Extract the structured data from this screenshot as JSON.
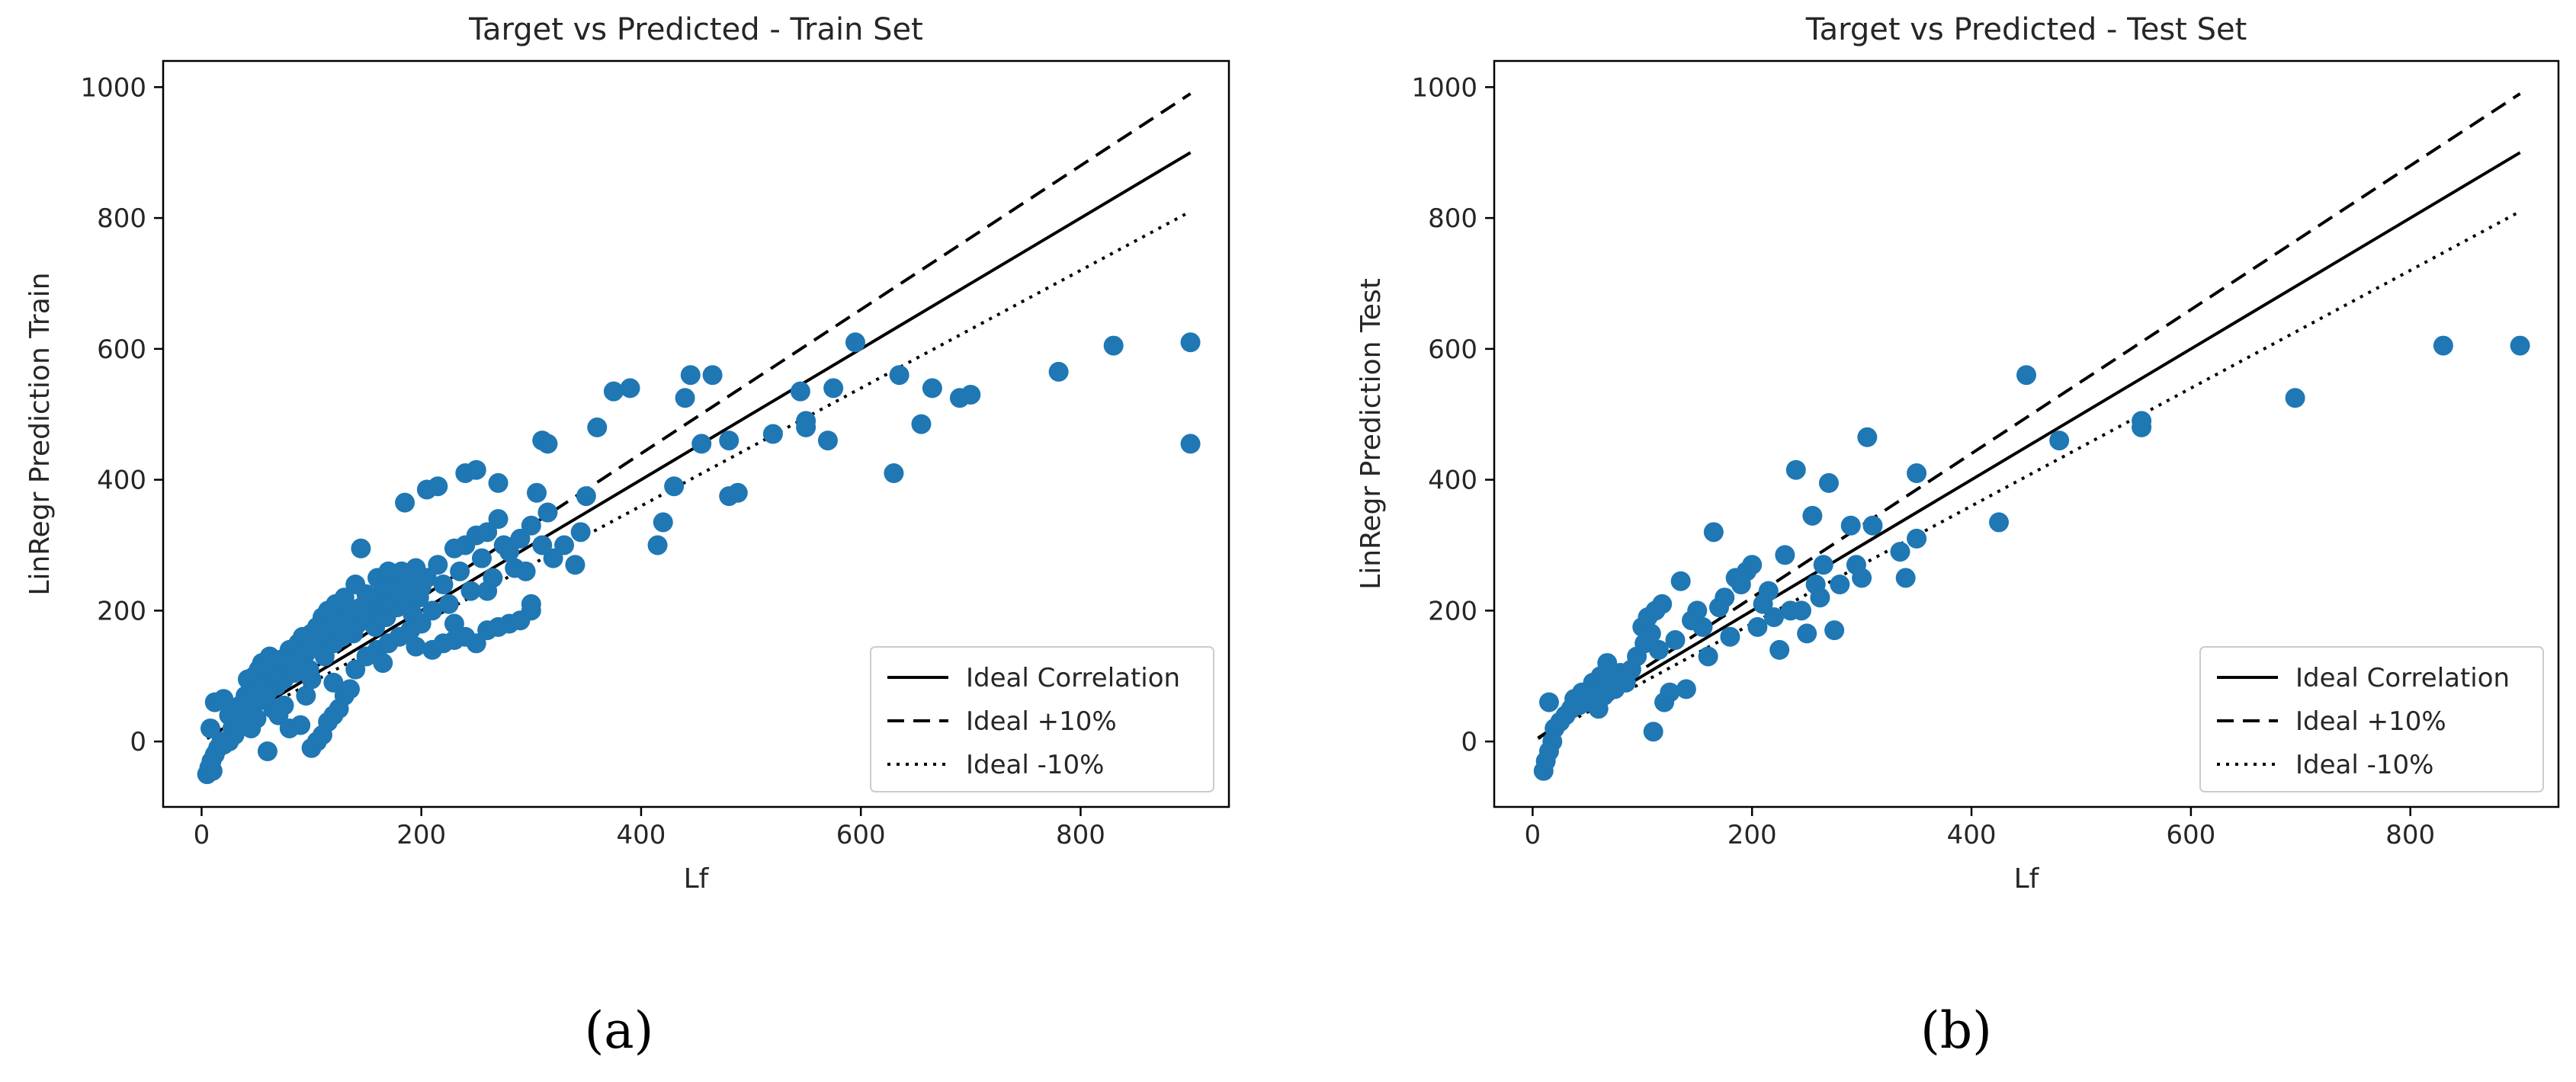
{
  "figure": {
    "panel_labels": [
      "(a)",
      "(b)"
    ]
  },
  "chart_data": [
    {
      "type": "scatter",
      "title": "Target vs Predicted - Train Set",
      "xlabel": "Lf",
      "ylabel": "LinRegr Prediction Train",
      "xlim": [
        -35,
        935
      ],
      "ylim": [
        -100,
        1040
      ],
      "xticks": [
        0,
        200,
        400,
        600,
        800
      ],
      "yticks": [
        0,
        200,
        400,
        600,
        800,
        1000
      ],
      "grid": false,
      "legend_position": "lower-right",
      "marker_color": "#1f77b4",
      "reference_lines": [
        {
          "name": "Ideal Correlation",
          "style": "solid",
          "factor": 1.0,
          "x": [
            5,
            900
          ],
          "color": "#000000"
        },
        {
          "name": "Ideal +10%",
          "style": "dashed",
          "factor": 1.1,
          "x": [
            5,
            900
          ],
          "color": "#000000"
        },
        {
          "name": "Ideal -10%",
          "style": "dotted",
          "factor": 0.9,
          "x": [
            5,
            900
          ],
          "color": "#000000"
        }
      ],
      "points": [
        [
          5,
          -50
        ],
        [
          7,
          -40
        ],
        [
          9,
          -30
        ],
        [
          12,
          -20
        ],
        [
          15,
          -10
        ],
        [
          18,
          0
        ],
        [
          8,
          20
        ],
        [
          12,
          60
        ],
        [
          20,
          65
        ],
        [
          25,
          40
        ],
        [
          28,
          20
        ],
        [
          32,
          30
        ],
        [
          35,
          55
        ],
        [
          38,
          45
        ],
        [
          40,
          70
        ],
        [
          42,
          95
        ],
        [
          45,
          80
        ],
        [
          48,
          100
        ],
        [
          50,
          60
        ],
        [
          52,
          110
        ],
        [
          55,
          120
        ],
        [
          58,
          90
        ],
        [
          60,
          75
        ],
        [
          62,
          130
        ],
        [
          65,
          115
        ],
        [
          68,
          85
        ],
        [
          70,
          100
        ],
        [
          72,
          125
        ],
        [
          75,
          95
        ],
        [
          78,
          110
        ],
        [
          80,
          140
        ],
        [
          82,
          130
        ],
        [
          85,
          105
        ],
        [
          88,
          150
        ],
        [
          90,
          120
        ],
        [
          92,
          160
        ],
        [
          95,
          135
        ],
        [
          98,
          110
        ],
        [
          100,
          165
        ],
        [
          102,
          145
        ],
        [
          105,
          175
        ],
        [
          108,
          155
        ],
        [
          110,
          190
        ],
        [
          112,
          130
        ],
        [
          115,
          200
        ],
        [
          118,
          170
        ],
        [
          120,
          150
        ],
        [
          122,
          210
        ],
        [
          125,
          185
        ],
        [
          128,
          160
        ],
        [
          130,
          220
        ],
        [
          132,
          175
        ],
        [
          135,
          195
        ],
        [
          138,
          165
        ],
        [
          140,
          240
        ],
        [
          142,
          180
        ],
        [
          145,
          205
        ],
        [
          148,
          185
        ],
        [
          150,
          225
        ],
        [
          152,
          195
        ],
        [
          155,
          215
        ],
        [
          158,
          175
        ],
        [
          160,
          250
        ],
        [
          162,
          200
        ],
        [
          165,
          230
        ],
        [
          168,
          190
        ],
        [
          170,
          260
        ],
        [
          172,
          215
        ],
        [
          175,
          240
        ],
        [
          178,
          205
        ],
        [
          180,
          225
        ],
        [
          182,
          260
        ],
        [
          185,
          210
        ],
        [
          188,
          245
        ],
        [
          190,
          230
        ],
        [
          192,
          195
        ],
        [
          195,
          265
        ],
        [
          198,
          220
        ],
        [
          200,
          235
        ],
        [
          205,
          250
        ],
        [
          210,
          200
        ],
        [
          215,
          270
        ],
        [
          220,
          240
        ],
        [
          225,
          210
        ],
        [
          230,
          295
        ],
        [
          235,
          260
        ],
        [
          240,
          300
        ],
        [
          245,
          230
        ],
        [
          250,
          315
        ],
        [
          255,
          280
        ],
        [
          260,
          320
        ],
        [
          265,
          250
        ],
        [
          270,
          340
        ],
        [
          275,
          300
        ],
        [
          280,
          290
        ],
        [
          285,
          265
        ],
        [
          290,
          310
        ],
        [
          295,
          260
        ],
        [
          300,
          330
        ],
        [
          305,
          380
        ],
        [
          310,
          300
        ],
        [
          315,
          350
        ],
        [
          320,
          280
        ],
        [
          330,
          300
        ],
        [
          340,
          270
        ],
        [
          345,
          320
        ],
        [
          350,
          375
        ],
        [
          310,
          460
        ],
        [
          315,
          455
        ],
        [
          270,
          395
        ],
        [
          240,
          410
        ],
        [
          250,
          415
        ],
        [
          215,
          390
        ],
        [
          205,
          385
        ],
        [
          185,
          365
        ],
        [
          145,
          295
        ],
        [
          360,
          480
        ],
        [
          375,
          535
        ],
        [
          390,
          540
        ],
        [
          415,
          300
        ],
        [
          420,
          335
        ],
        [
          430,
          390
        ],
        [
          445,
          560
        ],
        [
          440,
          525
        ],
        [
          465,
          560
        ],
        [
          455,
          455
        ],
        [
          480,
          460
        ],
        [
          480,
          375
        ],
        [
          488,
          380
        ],
        [
          520,
          470
        ],
        [
          545,
          535
        ],
        [
          550,
          480
        ],
        [
          550,
          490
        ],
        [
          570,
          460
        ],
        [
          575,
          540
        ],
        [
          595,
          610
        ],
        [
          630,
          410
        ],
        [
          635,
          560
        ],
        [
          655,
          485
        ],
        [
          665,
          540
        ],
        [
          690,
          525
        ],
        [
          700,
          530
        ],
        [
          780,
          565
        ],
        [
          830,
          605
        ],
        [
          900,
          610
        ],
        [
          900,
          455
        ],
        [
          60,
          -15
        ],
        [
          80,
          20
        ],
        [
          100,
          -10
        ],
        [
          105,
          0
        ],
        [
          110,
          10
        ],
        [
          115,
          30
        ],
        [
          120,
          40
        ],
        [
          125,
          50
        ],
        [
          130,
          70
        ],
        [
          135,
          80
        ],
        [
          90,
          25
        ],
        [
          70,
          40
        ],
        [
          50,
          35
        ],
        [
          75,
          55
        ],
        [
          100,
          95
        ],
        [
          150,
          130
        ],
        [
          160,
          140
        ],
        [
          170,
          150
        ],
        [
          180,
          160
        ],
        [
          190,
          170
        ],
        [
          200,
          180
        ],
        [
          210,
          140
        ],
        [
          220,
          150
        ],
        [
          230,
          155
        ],
        [
          240,
          160
        ],
        [
          250,
          150
        ],
        [
          260,
          170
        ],
        [
          270,
          175
        ],
        [
          280,
          180
        ],
        [
          290,
          185
        ],
        [
          300,
          200
        ],
        [
          300,
          210
        ],
        [
          260,
          230
        ],
        [
          230,
          180
        ],
        [
          195,
          145
        ],
        [
          165,
          120
        ],
        [
          140,
          110
        ],
        [
          120,
          90
        ],
        [
          95,
          70
        ],
        [
          65,
          50
        ],
        [
          45,
          20
        ],
        [
          30,
          10
        ],
        [
          25,
          0
        ],
        [
          20,
          -5
        ],
        [
          10,
          -45
        ]
      ]
    },
    {
      "type": "scatter",
      "title": "Target vs Predicted - Test Set",
      "xlabel": "Lf",
      "ylabel": "LinRegr Prediction Test",
      "xlim": [
        -35,
        935
      ],
      "ylim": [
        -100,
        1040
      ],
      "xticks": [
        0,
        200,
        400,
        600,
        800
      ],
      "yticks": [
        0,
        200,
        400,
        600,
        800,
        1000
      ],
      "grid": false,
      "legend_position": "lower-right",
      "marker_color": "#1f77b4",
      "reference_lines": [
        {
          "name": "Ideal Correlation",
          "style": "solid",
          "factor": 1.0,
          "x": [
            5,
            900
          ],
          "color": "#000000"
        },
        {
          "name": "Ideal +10%",
          "style": "dashed",
          "factor": 1.1,
          "x": [
            5,
            900
          ],
          "color": "#000000"
        },
        {
          "name": "Ideal -10%",
          "style": "dotted",
          "factor": 0.9,
          "x": [
            5,
            900
          ],
          "color": "#000000"
        }
      ],
      "points": [
        [
          10,
          -45
        ],
        [
          12,
          -30
        ],
        [
          15,
          -15
        ],
        [
          18,
          0
        ],
        [
          15,
          60
        ],
        [
          20,
          20
        ],
        [
          25,
          30
        ],
        [
          30,
          40
        ],
        [
          35,
          50
        ],
        [
          38,
          65
        ],
        [
          42,
          55
        ],
        [
          45,
          75
        ],
        [
          50,
          60
        ],
        [
          55,
          90
        ],
        [
          58,
          80
        ],
        [
          60,
          50
        ],
        [
          62,
          100
        ],
        [
          65,
          70
        ],
        [
          68,
          120
        ],
        [
          70,
          95
        ],
        [
          75,
          80
        ],
        [
          80,
          105
        ],
        [
          85,
          90
        ],
        [
          90,
          110
        ],
        [
          95,
          130
        ],
        [
          100,
          175
        ],
        [
          102,
          150
        ],
        [
          105,
          190
        ],
        [
          108,
          165
        ],
        [
          110,
          15
        ],
        [
          112,
          200
        ],
        [
          115,
          140
        ],
        [
          118,
          210
        ],
        [
          120,
          60
        ],
        [
          125,
          75
        ],
        [
          130,
          155
        ],
        [
          135,
          245
        ],
        [
          140,
          80
        ],
        [
          145,
          185
        ],
        [
          150,
          200
        ],
        [
          155,
          175
        ],
        [
          160,
          130
        ],
        [
          165,
          320
        ],
        [
          170,
          205
        ],
        [
          175,
          220
        ],
        [
          180,
          160
        ],
        [
          185,
          250
        ],
        [
          190,
          240
        ],
        [
          195,
          260
        ],
        [
          200,
          270
        ],
        [
          205,
          175
        ],
        [
          210,
          210
        ],
        [
          215,
          230
        ],
        [
          220,
          190
        ],
        [
          225,
          140
        ],
        [
          230,
          285
        ],
        [
          235,
          200
        ],
        [
          240,
          415
        ],
        [
          245,
          200
        ],
        [
          250,
          165
        ],
        [
          255,
          345
        ],
        [
          258,
          240
        ],
        [
          262,
          220
        ],
        [
          265,
          270
        ],
        [
          270,
          395
        ],
        [
          275,
          170
        ],
        [
          280,
          240
        ],
        [
          290,
          330
        ],
        [
          295,
          270
        ],
        [
          300,
          250
        ],
        [
          305,
          465
        ],
        [
          310,
          330
        ],
        [
          335,
          290
        ],
        [
          340,
          250
        ],
        [
          350,
          410
        ],
        [
          350,
          310
        ],
        [
          425,
          335
        ],
        [
          450,
          560
        ],
        [
          480,
          460
        ],
        [
          555,
          490
        ],
        [
          555,
          480
        ],
        [
          695,
          525
        ],
        [
          830,
          605
        ],
        [
          900,
          605
        ]
      ]
    }
  ]
}
